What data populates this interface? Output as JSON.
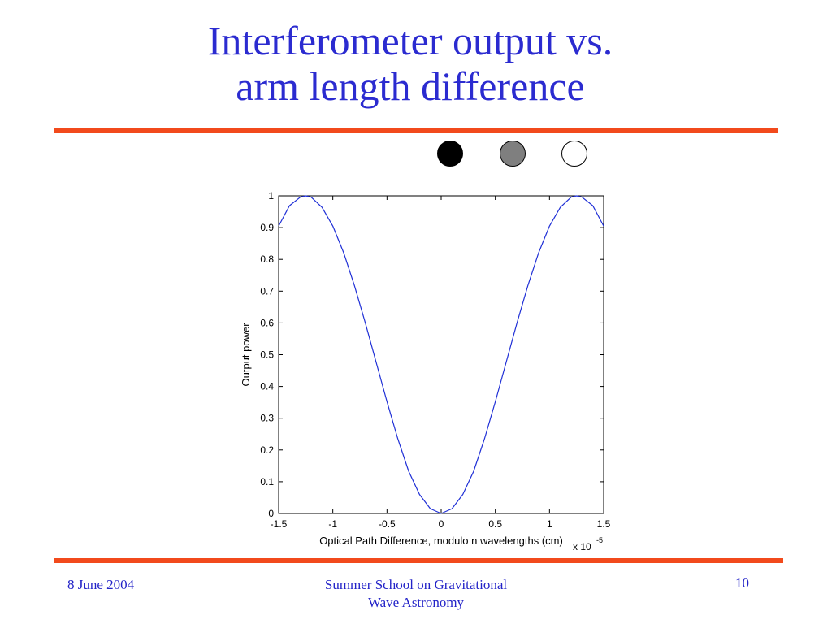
{
  "slide": {
    "title_lines": [
      "Interferometer output vs.",
      "arm length difference"
    ],
    "title_color": "#2b2bd0",
    "rule_color": "#f24a1c",
    "indicator_dots": [
      {
        "name": "black-dot",
        "color": "#000000"
      },
      {
        "name": "gray-dot",
        "color": "#7f7f7f"
      },
      {
        "name": "white-dot",
        "color": "#ffffff"
      }
    ]
  },
  "footer": {
    "date": "8 June 2004",
    "event_line1": "Summer School on Gravitational",
    "event_line2": "Wave Astronomy",
    "page_number": "10"
  },
  "chart_data": {
    "type": "line",
    "title": "",
    "xlabel": "Optical Path Difference, modulo n wavelengths (cm)",
    "ylabel": "Output power",
    "x_multiplier": "x 10",
    "x_multiplier_exponent": "-5",
    "xlim": [
      -1.5,
      1.5
    ],
    "ylim": [
      0,
      1
    ],
    "xticks": [
      -1.5,
      -1,
      -0.5,
      0,
      0.5,
      1,
      1.5
    ],
    "xtick_labels": [
      "-1.5",
      "-1",
      "-0.5",
      "0",
      "0.5",
      "1",
      "1.5"
    ],
    "yticks": [
      0,
      0.1,
      0.2,
      0.3,
      0.4,
      0.5,
      0.6,
      0.7,
      0.8,
      0.9,
      1
    ],
    "ytick_labels": [
      "0",
      "0.1",
      "0.2",
      "0.3",
      "0.4",
      "0.5",
      "0.6",
      "0.7",
      "0.8",
      "0.9",
      "1"
    ],
    "grid": false,
    "line_color": "#1f2fd6",
    "series": [
      {
        "x": [
          -1.5,
          -1.4,
          -1.3,
          -1.25,
          -1.2,
          -1.1,
          -1.0,
          -0.9,
          -0.8,
          -0.7,
          -0.6,
          -0.5,
          -0.4,
          -0.3,
          -0.2,
          -0.1,
          0,
          0.1,
          0.2,
          0.3,
          0.4,
          0.5,
          0.6,
          0.7,
          0.8,
          0.9,
          1.0,
          1.1,
          1.2,
          1.25,
          1.3,
          1.4,
          1.5
        ],
        "y": [
          0.905,
          0.969,
          0.996,
          1.0,
          0.996,
          0.964,
          0.905,
          0.821,
          0.717,
          0.6,
          0.476,
          0.352,
          0.235,
          0.133,
          0.06,
          0.015,
          0.0,
          0.015,
          0.06,
          0.133,
          0.235,
          0.352,
          0.476,
          0.6,
          0.717,
          0.821,
          0.905,
          0.964,
          0.996,
          1.0,
          0.996,
          0.969,
          0.905
        ]
      }
    ]
  }
}
